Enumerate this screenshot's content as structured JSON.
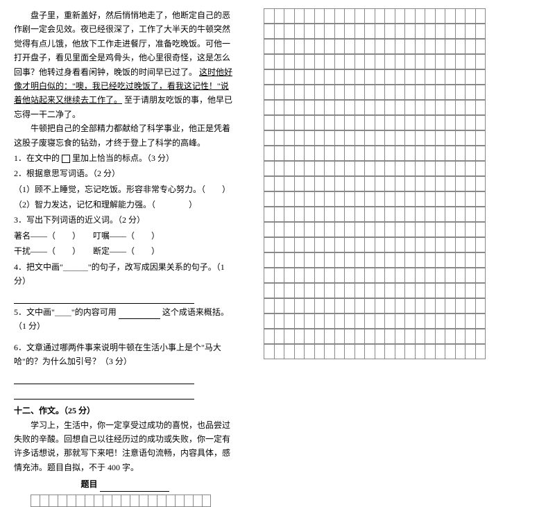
{
  "passage": {
    "p1": "盘子里，重新盖好，然后悄悄地走了，他断定自己的恶作剧一定会见效。夜已经很深了，工作了大半天的牛顿突然觉得有点儿饿，他放下工作走进餐厅，准备吃晚饭。可他一打开盘子，看见里面全是鸡骨头，他心里很奇怪，这是怎么回事？他转过身看看闲钟，晚饭的时间早已过了。",
    "p1_underline": "这时他好像才明白似的：\"噢，我已经吃过晚饭了，看我这记性！\"说着他站起来又继续去工作了。",
    "p1_tail": "至于请朋友吃饭的事，他早已忘得一干二净了。",
    "p2": "牛顿把自己的全部精力都献给了科学事业，他正是凭着这股子废寝忘食的钻劲，才终于登上了科学的高峰。"
  },
  "questions": {
    "q1": "1．在文中的",
    "q1_tail": "里加上恰当的标点。（3 分）",
    "q2": "2．根据意思写词语。（2 分）",
    "q2a": "（1）顾不上睡觉，忘记吃饭。形容非常专心努力。（　　）",
    "q2b": "（2）智力发达，记忆和理解能力强。（　　　　）",
    "q3": "3．写出下列词语的近义词。（2 分）",
    "q3a": "著名——（　　）　　叮嘱——（　　）",
    "q3b": "干扰——（　　）　　断定——（　　）",
    "q4": "4．把文中画\"＿＿＿\"的句子，改写成因果关系的句子。（1 分）",
    "q5": "5．文中画\"＿＿\"的内容可用",
    "q5_tail": "这个成语来概括。（1 分）",
    "q6": "6．文章通过哪两件事来说明牛顿在生活小事上是个\"马大哈\"的？为什么加引号？（3 分）"
  },
  "composition": {
    "title": "十二、作文。（25 分）",
    "prompt": "学习上，生活中，你一定享受过成功的喜悦，也品尝过失败的辛酸。回想自己以往经历过的成功或失败，你一定有许多话想说，那就写下来吧！注意语句流畅，内容具体，感情充沛。题目自拟，不于 400 字。",
    "topic_label": "题目"
  },
  "grid": {
    "cols": 22,
    "rows_right": 23,
    "cols_small": 20,
    "bordercolor": "#888888"
  }
}
